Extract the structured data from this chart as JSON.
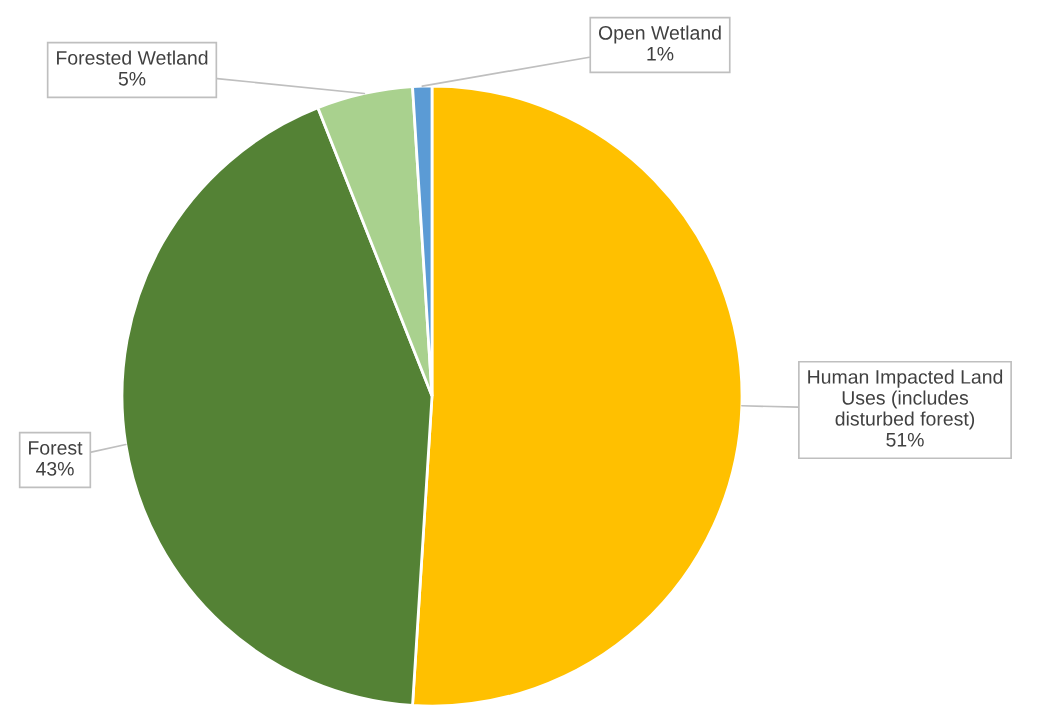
{
  "chart_data": {
    "type": "pie",
    "categories": [
      "Human Impacted Land Uses (includes disturbed forest)",
      "Forest",
      "Forested Wetland",
      "Open Wetland"
    ],
    "values": [
      51,
      43,
      5,
      1
    ],
    "colors": [
      "#ffc000",
      "#548235",
      "#a9d18e",
      "#5b9bd5"
    ],
    "value_labels": [
      "51%",
      "43%",
      "5%",
      "1%"
    ]
  }
}
